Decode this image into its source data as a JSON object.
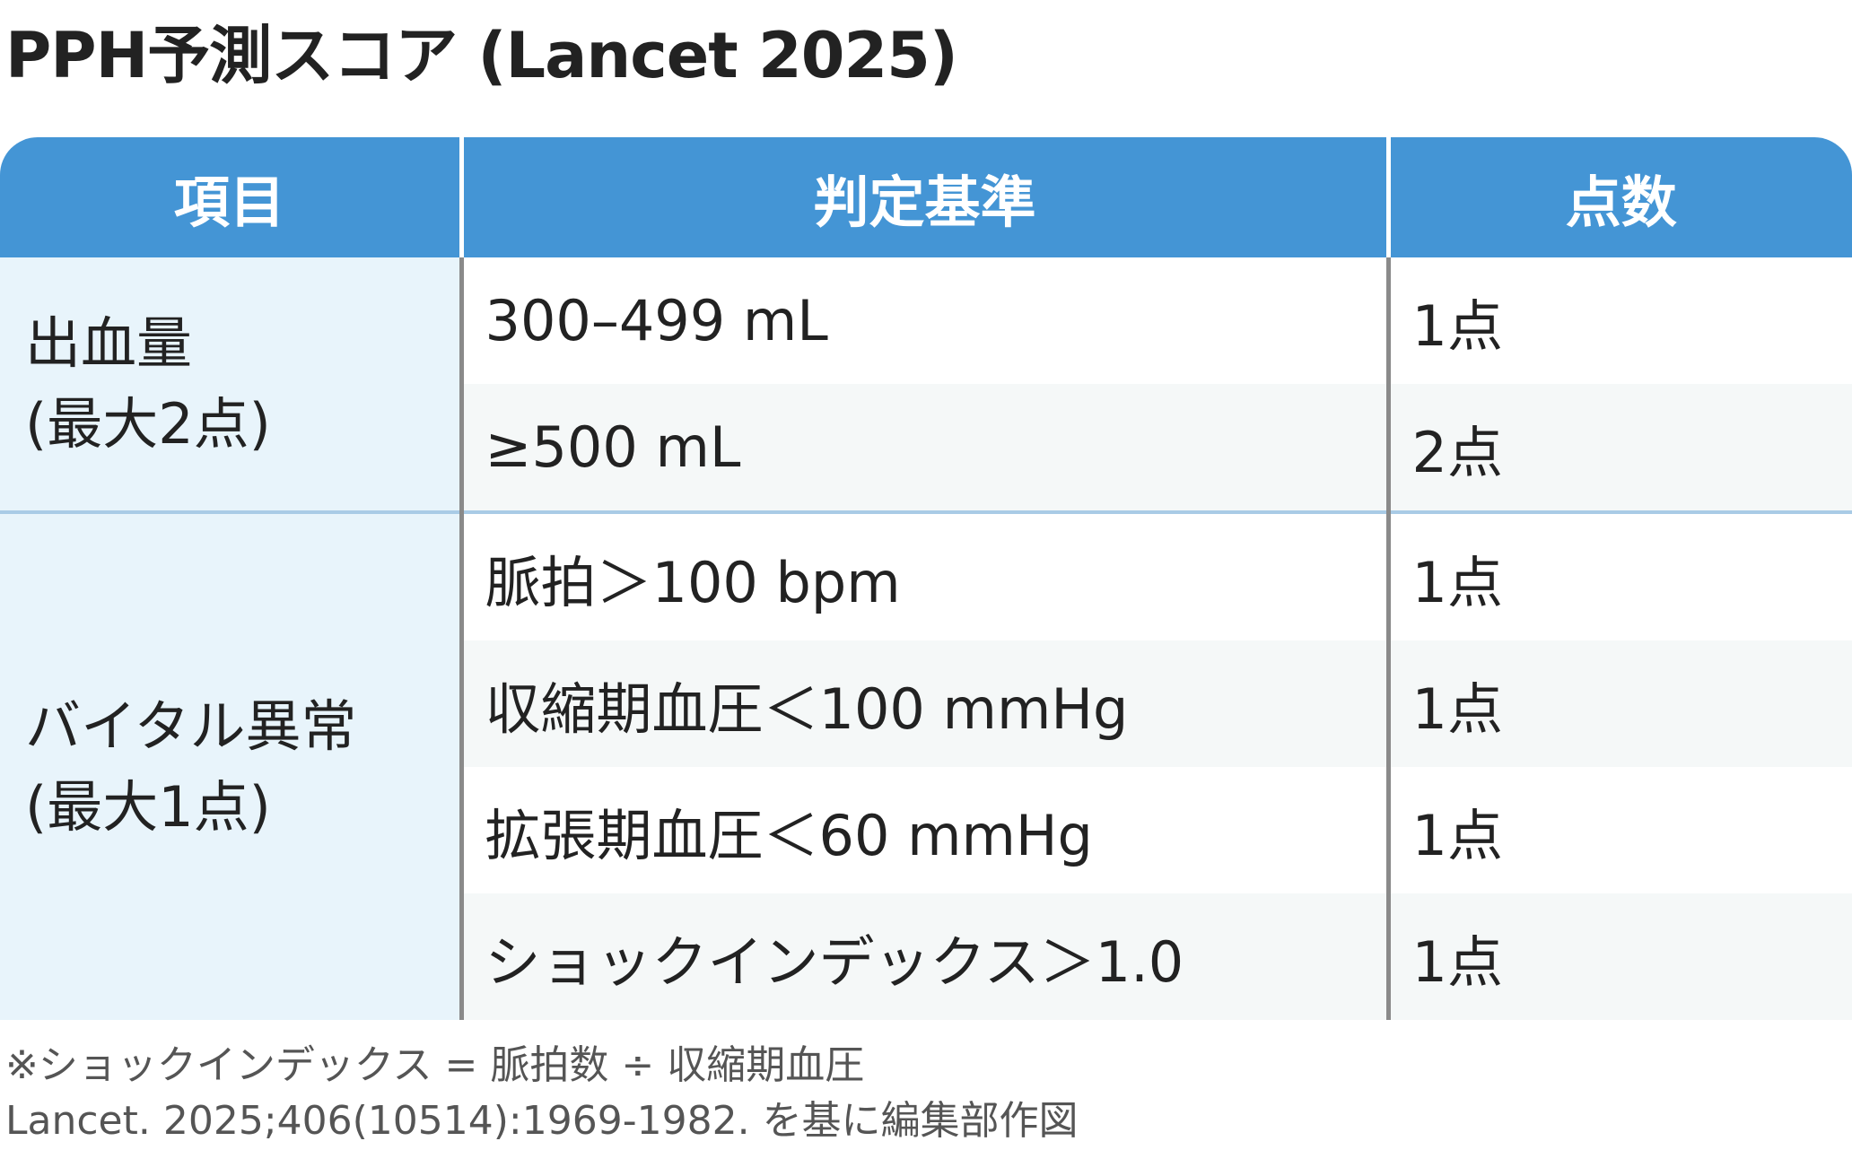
{
  "title": "PPH予測スコア (Lancet 2025)",
  "table": {
    "headers": [
      "項目",
      "判定基準",
      "点数"
    ],
    "groups": [
      {
        "category_line1": "出血量",
        "category_line2": "(最大2点)",
        "rows": [
          {
            "criterion": "300–499 mL",
            "points": "1点"
          },
          {
            "criterion": "≥500 mL",
            "points": "2点"
          }
        ]
      },
      {
        "category_line1": "バイタル異常",
        "category_line2": "(最大1点)",
        "rows": [
          {
            "criterion": "脈拍＞100 bpm",
            "points": "1点"
          },
          {
            "criterion": "収縮期血圧＜100 mmHg",
            "points": "1点"
          },
          {
            "criterion": "拡張期血圧＜60 mmHg",
            "points": "1点"
          },
          {
            "criterion": "ショックインデックス＞1.0",
            "points": "1点"
          }
        ]
      }
    ]
  },
  "footnotes": {
    "shock_index": "※ショックインデックス = 脈拍数 ÷ 収縮期血圧",
    "citation": "Lancet. 2025;406(10514):1969-1982. を基に編集部作図"
  },
  "colors": {
    "header_bg": "#4495d5",
    "category_bg": "#e8f4fb",
    "alt_row_bg": "#f5f8f8",
    "group_divider": "#a9cbe6"
  }
}
